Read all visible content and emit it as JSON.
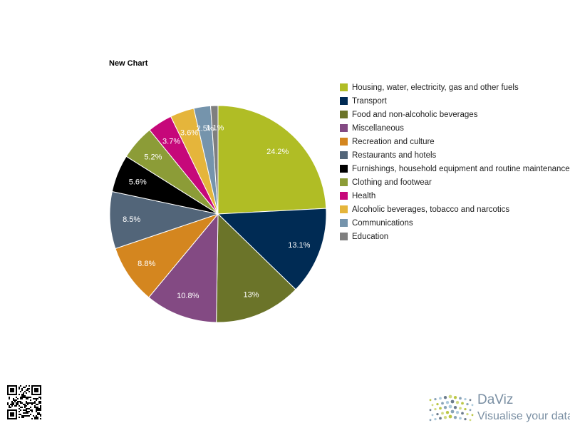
{
  "chart_data": {
    "type": "pie",
    "title": "New Chart",
    "categories": [
      "Housing, water, electricity, gas and other fuels",
      "Transport",
      "Food and non-alcoholic beverages",
      "Miscellaneous",
      "Recreation and culture",
      "Restaurants and hotels",
      "Furnishings, household equipment and routine maintenance",
      "Clothing and footwear",
      "Health",
      "Alcoholic beverages, tobacco and narcotics",
      "Communications",
      "Education"
    ],
    "values": [
      24.2,
      13.1,
      13,
      10.8,
      8.8,
      8.5,
      5.6,
      5.2,
      3.7,
      3.6,
      2.5,
      1.1
    ],
    "labels": [
      "24.2%",
      "13.1%",
      "13%",
      "10.8%",
      "8.8%",
      "8.5%",
      "5.6%",
      "5.2%",
      "3.7%",
      "3.6%",
      "2.5%",
      "1.1%"
    ],
    "colors": [
      "#b0bd25",
      "#002b54",
      "#6b7429",
      "#834a83",
      "#d4861f",
      "#526579",
      "#000000",
      "#8c9c37",
      "#c6087a",
      "#e5b53b",
      "#7594ac",
      "#7f7f7f"
    ],
    "legend_position": "right"
  },
  "logo": {
    "name": "DaViz",
    "tagline": "Visualise your data"
  }
}
